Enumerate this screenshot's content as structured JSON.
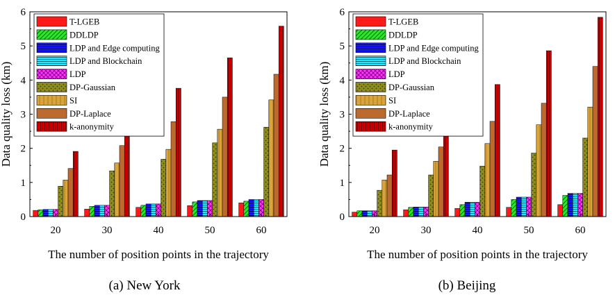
{
  "patterns": {
    "T-LGEB": {
      "fill": "#ff1a1a",
      "hatch": "none",
      "ink": "#000000"
    },
    "DDLDP": {
      "fill": "#2ee62e",
      "hatch": "diag",
      "ink": "#006600"
    },
    "LDP and Edge computing": {
      "fill": "#1a1aff",
      "hatch": "hlines",
      "ink": "#000066"
    },
    "LDP and Blockchain": {
      "fill": "#22e8ff",
      "hatch": "hlines",
      "ink": "#006b7a"
    },
    "LDP": {
      "fill": "#ff33ff",
      "hatch": "cross",
      "ink": "#7a007a"
    },
    "DP-Gaussian": {
      "fill": "#8c8c1f",
      "hatch": "dots",
      "ink": "#3d3d00"
    },
    "SI": {
      "fill": "#d9a43a",
      "hatch": "vlines",
      "ink": "#8a5a10"
    },
    "DP-Laplace": {
      "fill": "#bd6a2f",
      "hatch": "none",
      "ink": "#5a2a08"
    },
    "k-anonymity": {
      "fill": "#cc0000",
      "hatch": "vdense",
      "ink": "#5a0000"
    }
  },
  "chart_data": [
    {
      "type": "bar",
      "caption": "(a)  New York",
      "xlabel": "The number of position points in the trajectory",
      "ylabel": "Data quality loss (km)",
      "ylim": [
        0,
        6
      ],
      "yticks": [
        "0",
        "1",
        "2",
        "3",
        "4",
        "5",
        "6"
      ],
      "categories": [
        "20",
        "30",
        "40",
        "50",
        "60"
      ],
      "legend": "top-left",
      "series": [
        {
          "name": "T-LGEB",
          "values": [
            0.18,
            0.22,
            0.27,
            0.32,
            0.4
          ]
        },
        {
          "name": "DDLDP",
          "values": [
            0.2,
            0.3,
            0.33,
            0.43,
            0.45
          ]
        },
        {
          "name": "LDP and Edge computing",
          "values": [
            0.21,
            0.33,
            0.37,
            0.47,
            0.5
          ]
        },
        {
          "name": "LDP and Blockchain",
          "values": [
            0.21,
            0.33,
            0.37,
            0.47,
            0.5
          ]
        },
        {
          "name": "LDP",
          "values": [
            0.21,
            0.33,
            0.37,
            0.47,
            0.5
          ]
        },
        {
          "name": "DP-Gaussian",
          "values": [
            0.89,
            1.34,
            1.68,
            2.16,
            2.62
          ]
        },
        {
          "name": "SI",
          "values": [
            1.07,
            1.57,
            1.97,
            2.56,
            3.42
          ]
        },
        {
          "name": "DP-Laplace",
          "values": [
            1.41,
            2.08,
            2.78,
            3.5,
            4.17
          ]
        },
        {
          "name": "k-anonymity",
          "values": [
            1.91,
            2.88,
            3.76,
            4.65,
            5.58
          ]
        }
      ]
    },
    {
      "type": "bar",
      "caption": "(b)  Beijing",
      "xlabel": "The number of position points in the trajectory",
      "ylabel": "Data quality loss (km)",
      "ylim": [
        0,
        6
      ],
      "yticks": [
        "0",
        "1",
        "2",
        "3",
        "4",
        "5",
        "6"
      ],
      "categories": [
        "20",
        "30",
        "40",
        "50",
        "60"
      ],
      "legend": "top-left",
      "series": [
        {
          "name": "T-LGEB",
          "values": [
            0.13,
            0.2,
            0.24,
            0.27,
            0.35
          ]
        },
        {
          "name": "DDLDP",
          "values": [
            0.17,
            0.27,
            0.35,
            0.5,
            0.62
          ]
        },
        {
          "name": "LDP and Edge computing",
          "values": [
            0.17,
            0.28,
            0.42,
            0.57,
            0.68
          ]
        },
        {
          "name": "LDP and Blockchain",
          "values": [
            0.17,
            0.28,
            0.42,
            0.57,
            0.68
          ]
        },
        {
          "name": "LDP",
          "values": [
            0.17,
            0.28,
            0.42,
            0.57,
            0.68
          ]
        },
        {
          "name": "DP-Gaussian",
          "values": [
            0.77,
            1.22,
            1.48,
            1.86,
            2.3
          ]
        },
        {
          "name": "SI",
          "values": [
            1.07,
            1.62,
            2.14,
            2.69,
            3.21
          ]
        },
        {
          "name": "DP-Laplace",
          "values": [
            1.22,
            2.04,
            2.79,
            3.32,
            4.4
          ]
        },
        {
          "name": "k-anonymity",
          "values": [
            1.95,
            2.88,
            3.87,
            4.86,
            5.84
          ]
        }
      ]
    }
  ]
}
